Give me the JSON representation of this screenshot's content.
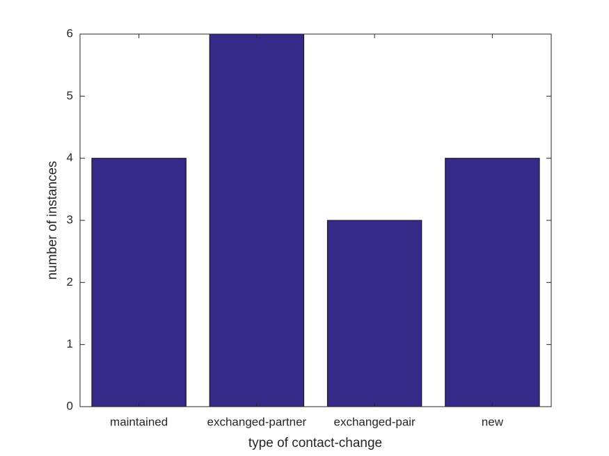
{
  "chart_data": {
    "type": "bar",
    "xlabel": "type of contact-change",
    "ylabel": "number of instances",
    "categories": [
      "maintained",
      "exchanged-partner",
      "exchanged-pair",
      "new"
    ],
    "values": [
      4,
      6,
      3,
      4
    ],
    "color": "#352a87",
    "ylim": [
      0,
      6
    ],
    "yticks": [
      0,
      1,
      2,
      3,
      4,
      5,
      6
    ],
    "grid": false
  }
}
